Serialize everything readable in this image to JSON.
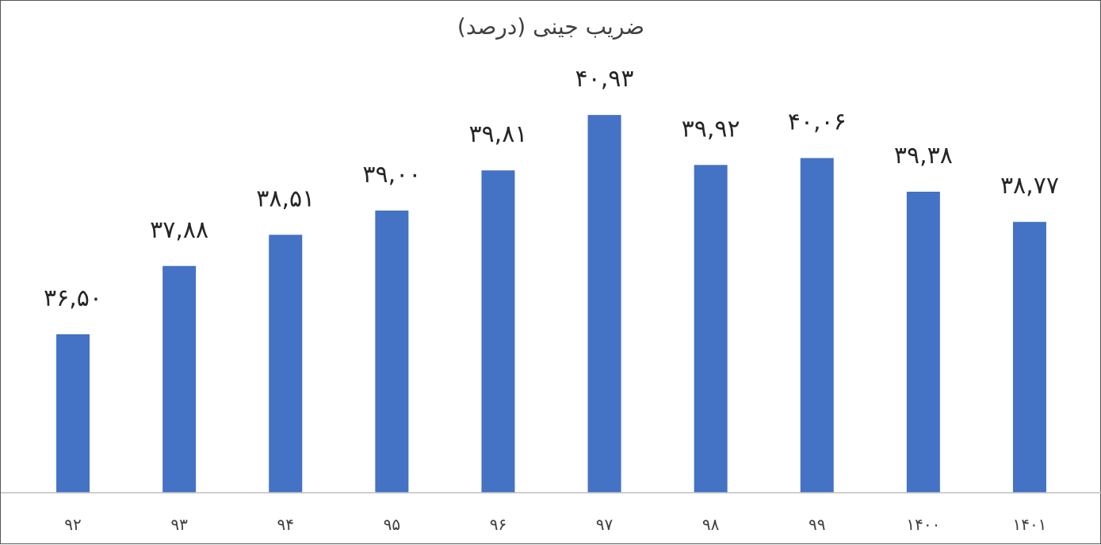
{
  "chart_data": {
    "type": "bar",
    "title": "ضریب جینی (درصد)",
    "categories": [
      "۹۲",
      "۹۳",
      "۹۴",
      "۹۵",
      "۹۶",
      "۹۷",
      "۹۸",
      "۹۹",
      "۱۴۰۰",
      "۱۴۰۱"
    ],
    "values": [
      36.5,
      37.88,
      38.51,
      39.0,
      39.81,
      40.93,
      39.92,
      40.06,
      39.38,
      38.77
    ],
    "data_labels": [
      "۳۶,۵۰",
      "۳۷,۸۸",
      "۳۸,۵۱",
      "۳۹,۰۰",
      "۳۹,۸۱",
      "۴۰,۹۳",
      "۳۹,۹۲",
      "۴۰,۰۶",
      "۳۹,۳۸",
      "۳۸,۷۷"
    ],
    "xlabel": "",
    "ylabel": "",
    "ylim": [
      33.3,
      41.7
    ],
    "grid": false,
    "legend": "none",
    "bar_color": "#4472C4",
    "axis_color": "#BFBFBF"
  }
}
